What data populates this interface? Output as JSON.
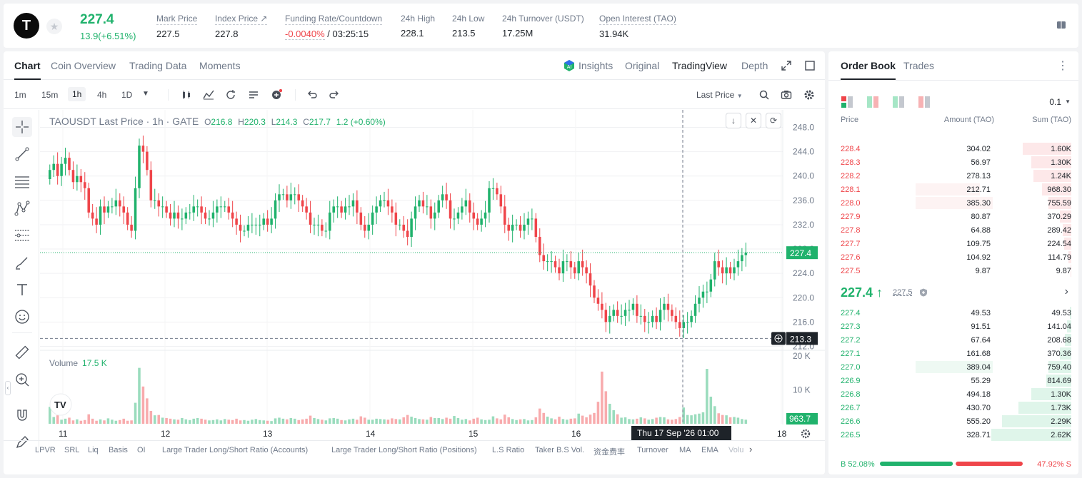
{
  "header": {
    "logo_letter": "T",
    "last_price": "227.4",
    "change": "13.9(+6.51%)",
    "stats": [
      {
        "label": "Mark Price",
        "value": "227.5"
      },
      {
        "label": "Index Price ↗",
        "value": "227.8"
      },
      {
        "label": "Funding Rate/Countdown",
        "value_red": "-0.0040%",
        "value": " / 03:25:15"
      },
      {
        "label": "24h High",
        "value": "228.1"
      },
      {
        "label": "24h Low",
        "value": "213.5"
      },
      {
        "label": "24h Turnover (USDT)",
        "value": "17.25M"
      },
      {
        "label": "Open Interest (TAO)",
        "value": "31.94K"
      }
    ]
  },
  "chart_tabs": [
    "Chart",
    "Coin Overview",
    "Trading Data",
    "Moments"
  ],
  "view_tabs": {
    "insights": "Insights",
    "original": "Original",
    "tradingview": "TradingView",
    "depth": "Depth"
  },
  "intervals": [
    "1m",
    "15m",
    "1h",
    "4h",
    "1D"
  ],
  "price_type": "Last Price",
  "legend": {
    "symbol": "TAOUSDT Last Price · 1h · GATE",
    "o": "O",
    "o_v": "216.8",
    "h": "H",
    "h_v": "220.3",
    "l": "L",
    "l_v": "214.3",
    "c": "C",
    "c_v": "217.7",
    "chg": "1.2 (+0.60%)"
  },
  "volume": {
    "label": "Volume",
    "value": "17.5 K"
  },
  "price_labels": {
    "current": "227.4",
    "crosshair": "213.3",
    "volume": "963.7"
  },
  "crosshair_time": "Thu 17 Sep '26   01:00",
  "indicators": [
    "LPVR",
    "SRL",
    "Liq",
    "Basis",
    "OI",
    "Large Trader Long/Short Ratio (Accounts)",
    "Large Trader Long/Short Ratio (Positions)",
    "L.S Ratio",
    "Taker B.S Vol.",
    "资金费率",
    "Turnover",
    "MA",
    "EMA",
    "Volu"
  ],
  "colors": {
    "up": "#20b26c",
    "down": "#ef454a"
  },
  "chart_data": {
    "type": "candlestick",
    "y_ticks": [
      "248.0",
      "244.0",
      "240.0",
      "236.0",
      "232.0",
      "228.0",
      "224.0",
      "220.0",
      "216.0",
      "212.0"
    ],
    "ylim": [
      211,
      249
    ],
    "x_ticks": [
      "11",
      "12",
      "13",
      "14",
      "15",
      "16",
      "18"
    ],
    "volume_ticks": [
      "20 K",
      "10 K"
    ],
    "volume_ylim": [
      0,
      20000
    ],
    "last_price": 227.4,
    "crosshair_price": 213.3,
    "candles_close": [
      241,
      242,
      240,
      242,
      243,
      241,
      239,
      240,
      239,
      238,
      234,
      233,
      232,
      235,
      234,
      235,
      235,
      236,
      235,
      234,
      232,
      231,
      238,
      245,
      244,
      241,
      236,
      236,
      235,
      235,
      234,
      233,
      234,
      233,
      233,
      234,
      234,
      235,
      235,
      234,
      233,
      233,
      234,
      235,
      235,
      235,
      234,
      233,
      232,
      231,
      231,
      232,
      232,
      232,
      232,
      233,
      232,
      233,
      236,
      237,
      237,
      236,
      237,
      237,
      236,
      235,
      234,
      232,
      232,
      232,
      231,
      231,
      234,
      235,
      235,
      234,
      235,
      235,
      236,
      234,
      232,
      231,
      232,
      234,
      235,
      236,
      236,
      235,
      234,
      232,
      232,
      231,
      230,
      233,
      235,
      236,
      235,
      235,
      233,
      234,
      236,
      237,
      236,
      233,
      233,
      234,
      235,
      236,
      234,
      233,
      232,
      233,
      234,
      238,
      238,
      237,
      235,
      232,
      231,
      232,
      232,
      231,
      232,
      233,
      233,
      230,
      227,
      226,
      226,
      226,
      225,
      224,
      226,
      226,
      225,
      224,
      226,
      225,
      224,
      222,
      220,
      219,
      218,
      216,
      217,
      218,
      217,
      217,
      218,
      218,
      219,
      217,
      217,
      216,
      216,
      217,
      216,
      218,
      219,
      218,
      217,
      216,
      215,
      216,
      216,
      217,
      219,
      220,
      221,
      221,
      223,
      226,
      225,
      224,
      225,
      224,
      225,
      226,
      227,
      227.4
    ],
    "volumes": [
      5000,
      2000,
      2500,
      1200,
      1500,
      1800,
      1000,
      1300,
      900,
      1100,
      2800,
      1500,
      900,
      1300,
      1000,
      1600,
      1200,
      900,
      1100,
      1500,
      900,
      1000,
      6200,
      16500,
      11000,
      7500,
      3800,
      2500,
      2600,
      1800,
      1700,
      1500,
      1300,
      1200,
      1700,
      1300,
      1100,
      1500,
      1700,
      1500,
      1200,
      1000,
      1100,
      1300,
      1000,
      1400,
      1200,
      1100,
      1500,
      1000,
      1100,
      900,
      1200,
      1400,
      1100,
      1000,
      900,
      800,
      1600,
      1800,
      1500,
      1300,
      1700,
      1500,
      1100,
      1300,
      1500,
      2400,
      1700,
      1400,
      1200,
      1000,
      1600,
      1700,
      1500,
      1100,
      1000,
      1300,
      1500,
      1200,
      2200,
      1800,
      1200,
      1200,
      1500,
      1400,
      1300,
      1200,
      1600,
      1400,
      1300,
      1900,
      2600,
      2100,
      1700,
      1400,
      1300,
      1200,
      2000,
      1700,
      1700,
      1400,
      1800,
      1500,
      2300,
      1700,
      1200,
      1400,
      1000,
      1500,
      1800,
      1300,
      1100,
      1200,
      2200,
      1600,
      1300,
      2700,
      1900,
      1400,
      1100,
      1300,
      1400,
      1000,
      1100,
      1900,
      4500,
      3200,
      2100,
      1600,
      1300,
      2100,
      1400,
      1200,
      1500,
      1600,
      3000,
      2400,
      1900,
      2700,
      3200,
      6500,
      15400,
      9600,
      5900,
      4000,
      2800,
      1800,
      1900,
      1400,
      1300,
      1500,
      1900,
      1600,
      1200,
      1400,
      1800,
      2000,
      1900,
      1300,
      1200,
      1400,
      2000,
      4800,
      2600,
      2500,
      2800,
      3000,
      3400,
      16200,
      8000,
      5200,
      3100,
      2600,
      2500,
      1900,
      2000,
      1800,
      1400,
      1200,
      1500,
      1400
    ]
  },
  "orderbook": {
    "tabs": [
      "Order Book",
      "Trades"
    ],
    "precision": "0.1",
    "headers": [
      "Price",
      "Amount (TAO)",
      "Sum (TAO)"
    ],
    "asks": [
      {
        "p": "228.4",
        "a": "304.02",
        "s": "1.60K",
        "w": 0.61,
        "aw": 0
      },
      {
        "p": "228.3",
        "a": "56.97",
        "s": "1.30K",
        "w": 0.5,
        "aw": 0
      },
      {
        "p": "228.2",
        "a": "278.13",
        "s": "1.24K",
        "w": 0.47,
        "aw": 0
      },
      {
        "p": "228.1",
        "a": "212.71",
        "s": "968.30",
        "w": 0.37,
        "aw": 0.3
      },
      {
        "p": "228.0",
        "a": "385.30",
        "s": "755.59",
        "w": 0.29,
        "aw": 0.36
      },
      {
        "p": "227.9",
        "a": "80.87",
        "s": "370.29",
        "w": 0.14,
        "aw": 0
      },
      {
        "p": "227.8",
        "a": "64.88",
        "s": "289.42",
        "w": 0.11,
        "aw": 0
      },
      {
        "p": "227.7",
        "a": "109.75",
        "s": "224.54",
        "w": 0.09,
        "aw": 0
      },
      {
        "p": "227.6",
        "a": "104.92",
        "s": "114.79",
        "w": 0.04,
        "aw": 0
      },
      {
        "p": "227.5",
        "a": "9.87",
        "s": "9.87",
        "w": 0.005,
        "aw": 0
      }
    ],
    "mid_price": "227.4 ↑",
    "mark_price": "227.5",
    "bids": [
      {
        "p": "227.4",
        "a": "49.53",
        "s": "49.53",
        "w": 0.02,
        "aw": 0
      },
      {
        "p": "227.3",
        "a": "91.51",
        "s": "141.04",
        "w": 0.05,
        "aw": 0
      },
      {
        "p": "227.2",
        "a": "67.64",
        "s": "208.68",
        "w": 0.08,
        "aw": 0
      },
      {
        "p": "227.1",
        "a": "161.68",
        "s": "370.36",
        "w": 0.14,
        "aw": 0
      },
      {
        "p": "227.0",
        "a": "389.04",
        "s": "759.40",
        "w": 0.29,
        "aw": 0.36
      },
      {
        "p": "226.9",
        "a": "55.29",
        "s": "814.69",
        "w": 0.31,
        "aw": 0
      },
      {
        "p": "226.8",
        "a": "494.18",
        "s": "1.30K",
        "w": 0.5,
        "aw": 0
      },
      {
        "p": "226.7",
        "a": "430.70",
        "s": "1.73K",
        "w": 0.66,
        "aw": 0
      },
      {
        "p": "226.6",
        "a": "555.20",
        "s": "2.29K",
        "w": 0.87,
        "aw": 0
      },
      {
        "p": "226.5",
        "a": "328.71",
        "s": "2.62K",
        "w": 1.0,
        "aw": 0
      }
    ],
    "buy_ratio": "B 52.08%",
    "sell_ratio": "47.92% S",
    "buy_fraction": 0.5208
  }
}
